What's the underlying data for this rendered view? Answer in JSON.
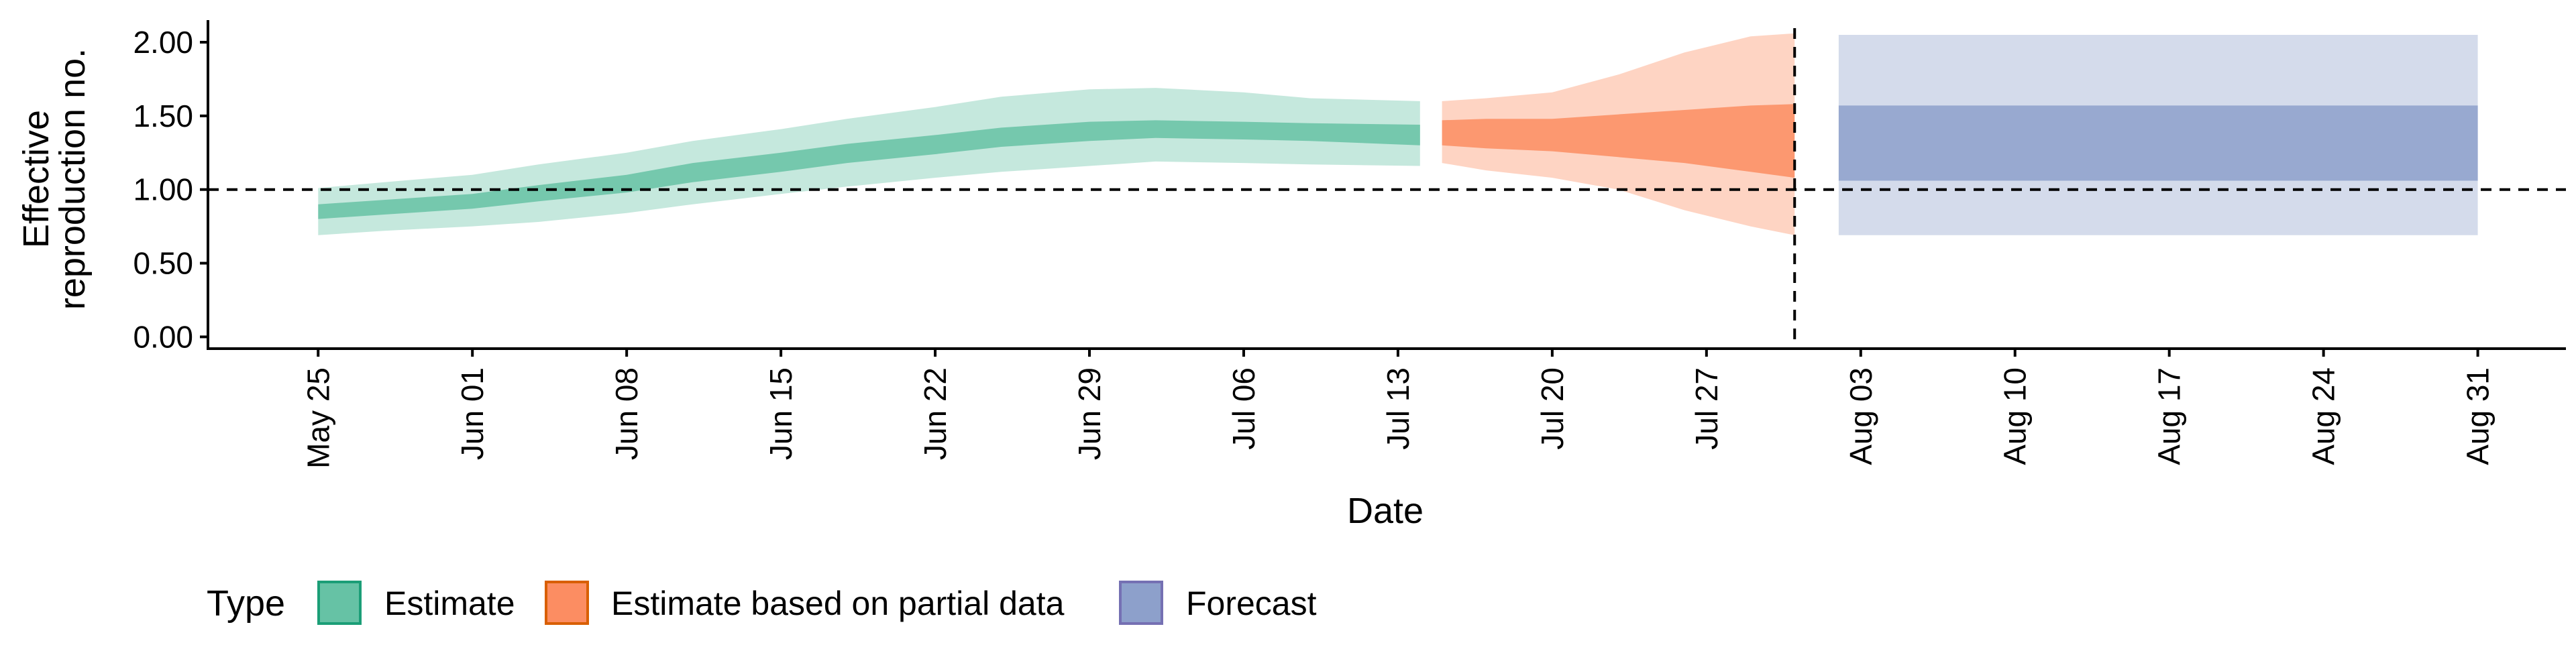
{
  "chart_data": {
    "type": "area",
    "xlabel": "Date",
    "ylabel_lines": [
      "Effective",
      "reproduction no."
    ],
    "x_ticks": [
      "May 25",
      "Jun 01",
      "Jun 08",
      "Jun 15",
      "Jun 22",
      "Jun 29",
      "Jul 06",
      "Jul 13",
      "Jul 20",
      "Jul 27",
      "Aug 03",
      "Aug 10",
      "Aug 17",
      "Aug 24",
      "Aug 31"
    ],
    "x_tick_dates": [
      "2020-05-25",
      "2020-06-01",
      "2020-06-08",
      "2020-06-15",
      "2020-06-22",
      "2020-06-29",
      "2020-07-06",
      "2020-07-13",
      "2020-07-20",
      "2020-07-27",
      "2020-08-03",
      "2020-08-10",
      "2020-08-17",
      "2020-08-24",
      "2020-08-31"
    ],
    "xlim": [
      "2020-05-20",
      "2020-09-04"
    ],
    "y_ticks": [
      "0.00",
      "0.50",
      "1.00",
      "1.50",
      "2.00"
    ],
    "y_tick_values": [
      0,
      0.5,
      1,
      1.5,
      2
    ],
    "ylim": [
      -0.08,
      2.15
    ],
    "reference_lines": {
      "horizontal_y": 1.0,
      "vertical_x": "2020-07-31"
    },
    "legend": {
      "title": "Type",
      "position": "bottom",
      "entries": [
        {
          "label": "Estimate",
          "fill": "#66c2a5",
          "border": "#1b9e77"
        },
        {
          "label": "Estimate based on partial data",
          "fill": "#fc8d62",
          "border": "#d95f02"
        },
        {
          "label": "Forecast",
          "fill": "#8da0cb",
          "border": "#7570b3"
        }
      ]
    },
    "series": [
      {
        "name": "Estimate",
        "color": "#66c2a5",
        "x": [
          "2020-05-25",
          "2020-05-28",
          "2020-06-01",
          "2020-06-04",
          "2020-06-08",
          "2020-06-11",
          "2020-06-15",
          "2020-06-18",
          "2020-06-22",
          "2020-06-25",
          "2020-06-29",
          "2020-07-02",
          "2020-07-06",
          "2020-07-09",
          "2020-07-14"
        ],
        "lower90": [
          0.69,
          0.72,
          0.75,
          0.78,
          0.84,
          0.9,
          0.97,
          1.02,
          1.08,
          1.12,
          1.16,
          1.19,
          1.18,
          1.17,
          1.16
        ],
        "lower50": [
          0.8,
          0.83,
          0.87,
          0.92,
          0.98,
          1.05,
          1.12,
          1.18,
          1.24,
          1.29,
          1.33,
          1.35,
          1.34,
          1.33,
          1.3
        ],
        "upper50": [
          0.9,
          0.93,
          0.97,
          1.03,
          1.1,
          1.18,
          1.25,
          1.31,
          1.37,
          1.42,
          1.46,
          1.47,
          1.46,
          1.45,
          1.44
        ],
        "upper90": [
          1.01,
          1.05,
          1.1,
          1.17,
          1.25,
          1.33,
          1.41,
          1.48,
          1.56,
          1.63,
          1.68,
          1.69,
          1.66,
          1.62,
          1.6
        ]
      },
      {
        "name": "Estimate based on partial data",
        "color": "#fc8d62",
        "x": [
          "2020-07-15",
          "2020-07-17",
          "2020-07-20",
          "2020-07-23",
          "2020-07-26",
          "2020-07-29",
          "2020-07-31"
        ],
        "lower90": [
          1.18,
          1.13,
          1.08,
          1.0,
          0.86,
          0.75,
          0.69
        ],
        "lower50": [
          1.3,
          1.28,
          1.26,
          1.22,
          1.18,
          1.12,
          1.08
        ],
        "upper50": [
          1.47,
          1.48,
          1.48,
          1.51,
          1.54,
          1.57,
          1.58
        ],
        "upper90": [
          1.6,
          1.62,
          1.66,
          1.78,
          1.93,
          2.04,
          2.06
        ]
      },
      {
        "name": "Forecast",
        "color": "#8da0cb",
        "x": [
          "2020-08-02",
          "2020-08-31"
        ],
        "lower90": [
          0.69,
          0.69
        ],
        "lower50": [
          1.06,
          1.06
        ],
        "upper50": [
          1.57,
          1.57
        ],
        "upper90": [
          2.05,
          2.05
        ]
      }
    ]
  }
}
